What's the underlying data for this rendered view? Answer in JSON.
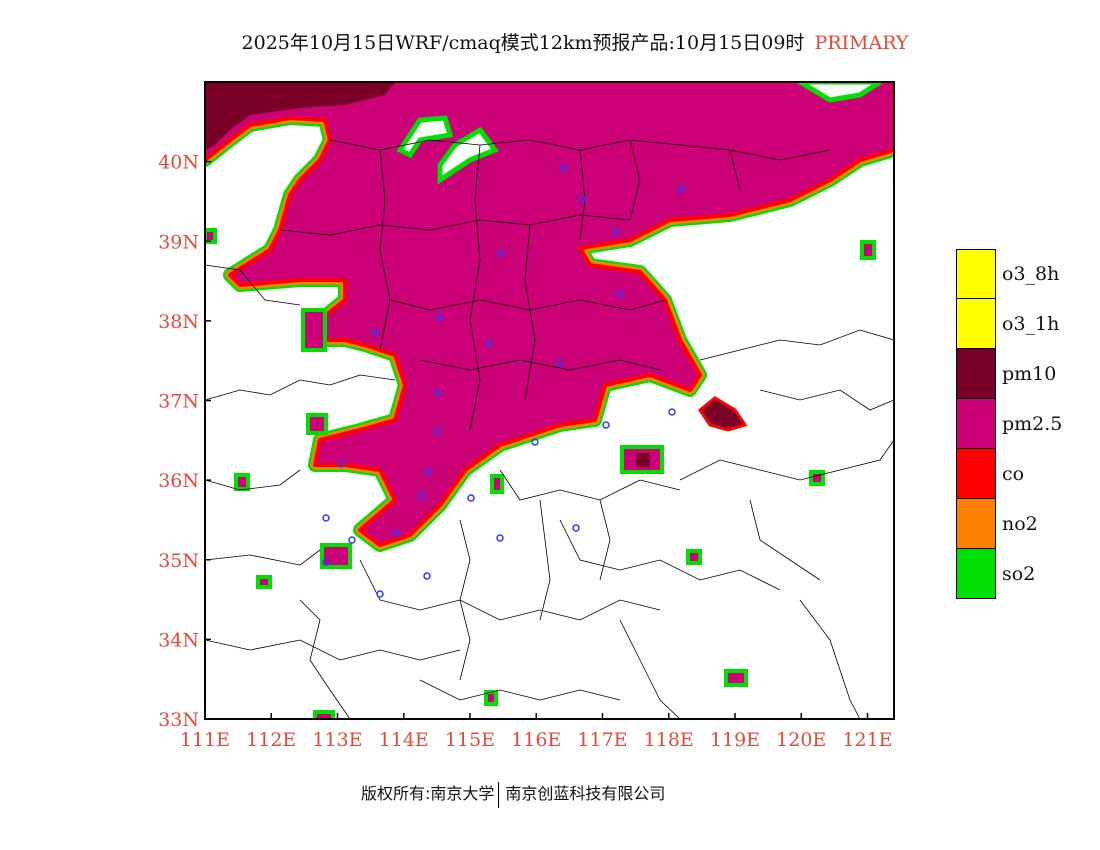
{
  "title": {
    "main": "2025年10月15日WRF/cmaq模式12km预报产品:10月15日09时",
    "mode": "PRIMARY"
  },
  "colors": {
    "frame": "#000000",
    "axis_label": "#e8483c",
    "pm25": "#cc0077",
    "pm10": "#7a0028",
    "co": "#ff0000",
    "no2": "#ff8000",
    "so2": "#00e000",
    "o3": "#ffff00",
    "station": "#2b3cff"
  },
  "map": {
    "lon_range": [
      111,
      121.4
    ],
    "lat_range": [
      33,
      41
    ],
    "lat_ticks": [
      "33N",
      "34N",
      "35N",
      "36N",
      "37N",
      "38N",
      "39N",
      "40N"
    ],
    "lon_ticks": [
      "111E",
      "112E",
      "113E",
      "114E",
      "115E",
      "116E",
      "117E",
      "118E",
      "119E",
      "120E",
      "121E"
    ]
  },
  "legend": {
    "items": [
      {
        "label": "o3_8h",
        "color": "#ffff00"
      },
      {
        "label": "o3_1h",
        "color": "#ffff00"
      },
      {
        "label": "pm10",
        "color": "#7a0028"
      },
      {
        "label": "pm2.5",
        "color": "#cc0077"
      },
      {
        "label": "co",
        "color": "#ff0000"
      },
      {
        "label": "no2",
        "color": "#ff8000"
      },
      {
        "label": "so2",
        "color": "#00e000"
      }
    ]
  },
  "footer": {
    "copyright": "版权所有:南京大学",
    "company": "南京创蓝科技有限公司"
  }
}
